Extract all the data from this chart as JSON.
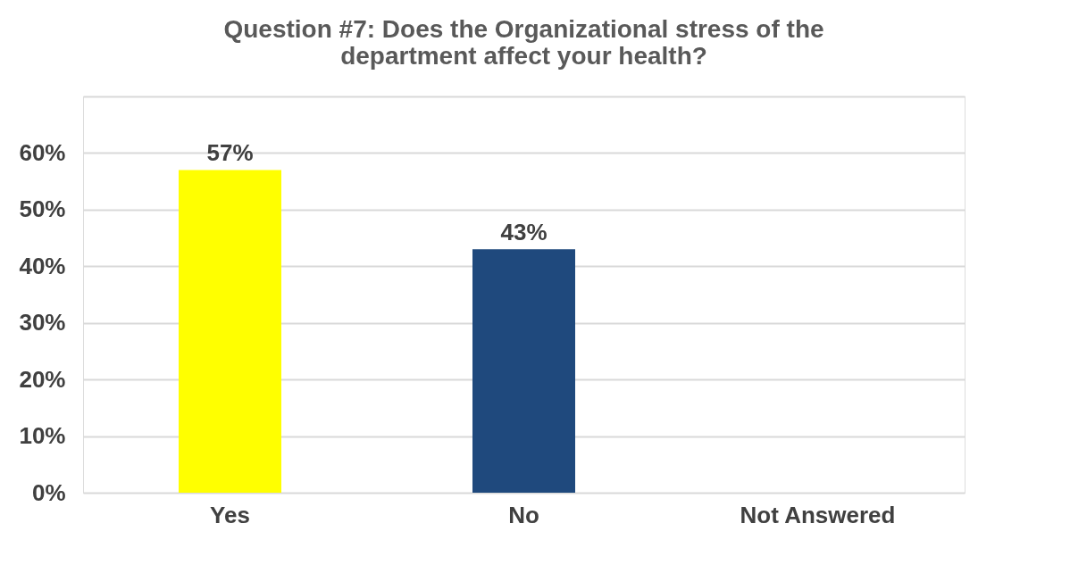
{
  "chart_data": {
    "type": "bar",
    "title": [
      "Question #7: Does the Organizational stress of the",
      "department affect your health?"
    ],
    "categories": [
      "Yes",
      "No",
      "Not Answered"
    ],
    "values": [
      57,
      43,
      null
    ],
    "colors": [
      "#ffff00",
      "#1f497d",
      "#808080"
    ],
    "value_labels": [
      "57%",
      "43%",
      null
    ],
    "ylim": [
      0,
      70
    ],
    "yticks": [
      {
        "value": 0,
        "label": "0%"
      },
      {
        "value": 10,
        "label": "10%"
      },
      {
        "value": 20,
        "label": "20%"
      },
      {
        "value": 30,
        "label": "30%"
      },
      {
        "value": 40,
        "label": "40%"
      },
      {
        "value": 50,
        "label": "50%"
      },
      {
        "value": 60,
        "label": "60%"
      },
      {
        "value": 70,
        "label": null
      }
    ],
    "grid": "y"
  }
}
